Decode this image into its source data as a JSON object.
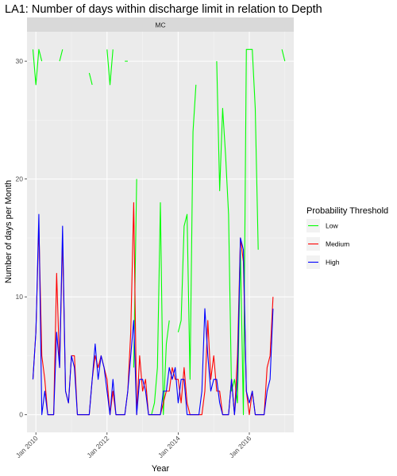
{
  "chart_data": {
    "type": "line",
    "title": "LA1: Number of days within discharge limit in relation to Depth",
    "facet": "MC",
    "xlabel": "Year",
    "ylabel": "Number of days per Month",
    "x_ticks": [
      "Jan 2010",
      "Jan 2012",
      "Jan 2014",
      "Jan 2016"
    ],
    "y_ticks": [
      0,
      10,
      20,
      30
    ],
    "ylim": [
      -1.5,
      32.5
    ],
    "xlim": [
      "2009-10",
      "2017-04"
    ],
    "grid": true,
    "legend_title": "Probability Threshold",
    "legend_position": "right",
    "series": [
      {
        "name": "Low",
        "color": "#00ff00",
        "points": [
          [
            "2009-12",
            31
          ],
          [
            "2010-01",
            28
          ],
          [
            "2010-02",
            31
          ],
          [
            "2010-03",
            30
          ],
          [
            "2010-04",
            null
          ],
          [
            "2010-08",
            null
          ],
          [
            "2010-09",
            30
          ],
          [
            "2010-10",
            31
          ],
          [
            "2010-11",
            null
          ],
          [
            "2011-06",
            null
          ],
          [
            "2011-07",
            29
          ],
          [
            "2011-08",
            28
          ],
          [
            "2011-09",
            null
          ],
          [
            "2011-12",
            null
          ],
          [
            "2012-01",
            31
          ],
          [
            "2012-02",
            28
          ],
          [
            "2012-03",
            31
          ],
          [
            "2012-04",
            null
          ],
          [
            "2012-06",
            null
          ],
          [
            "2012-07",
            30
          ],
          [
            "2012-08",
            30
          ],
          [
            "2012-09",
            null
          ],
          [
            "2012-10",
            4
          ],
          [
            "2012-11",
            20
          ],
          [
            "2012-12",
            null
          ],
          [
            "2013-04",
            0
          ],
          [
            "2013-05",
            1
          ],
          [
            "2013-06",
            4
          ],
          [
            "2013-07",
            18
          ],
          [
            "2013-08",
            0
          ],
          [
            "2013-09",
            6
          ],
          [
            "2013-10",
            8
          ],
          [
            "2013-11",
            null
          ],
          [
            "2014-01",
            7
          ],
          [
            "2014-02",
            8
          ],
          [
            "2014-03",
            16
          ],
          [
            "2014-04",
            17
          ],
          [
            "2014-05",
            3
          ],
          [
            "2014-06",
            24
          ],
          [
            "2014-07",
            28
          ],
          [
            "2014-08",
            null
          ],
          [
            "2015-02",
            30
          ],
          [
            "2015-03",
            19
          ],
          [
            "2015-04",
            26
          ],
          [
            "2015-05",
            22
          ],
          [
            "2015-06",
            17
          ],
          [
            "2015-07",
            2
          ],
          [
            "2015-08",
            3
          ],
          [
            "2015-09",
            1
          ],
          [
            "2015-10",
            14
          ],
          [
            "2015-11",
            0
          ],
          [
            "2015-12",
            31
          ],
          [
            "2016-01",
            31
          ],
          [
            "2016-02",
            31
          ],
          [
            "2016-03",
            26
          ],
          [
            "2016-04",
            14
          ],
          [
            "2016-05",
            null
          ],
          [
            "2016-11",
            null
          ],
          [
            "2016-12",
            31
          ],
          [
            "2017-01",
            30
          ]
        ]
      },
      {
        "name": "Medium",
        "color": "#ff0000",
        "points": [
          [
            "2009-12",
            3
          ],
          [
            "2010-01",
            7
          ],
          [
            "2010-02",
            16
          ],
          [
            "2010-03",
            5
          ],
          [
            "2010-04",
            3
          ],
          [
            "2010-05",
            0
          ],
          [
            "2010-06",
            0
          ],
          [
            "2010-07",
            0
          ],
          [
            "2010-08",
            12
          ],
          [
            "2010-09",
            4
          ],
          [
            "2010-10",
            15
          ],
          [
            "2010-11",
            2
          ],
          [
            "2010-12",
            1
          ],
          [
            "2011-01",
            5
          ],
          [
            "2011-02",
            5
          ],
          [
            "2011-03",
            0
          ],
          [
            "2011-04",
            0
          ],
          [
            "2011-05",
            0
          ],
          [
            "2011-06",
            0
          ],
          [
            "2011-07",
            0
          ],
          [
            "2011-08",
            3
          ],
          [
            "2011-09",
            5
          ],
          [
            "2011-10",
            4
          ],
          [
            "2011-11",
            5
          ],
          [
            "2011-12",
            4
          ],
          [
            "2012-01",
            3
          ],
          [
            "2012-02",
            0
          ],
          [
            "2012-03",
            2
          ],
          [
            "2012-04",
            0
          ],
          [
            "2012-05",
            0
          ],
          [
            "2012-06",
            0
          ],
          [
            "2012-07",
            0
          ],
          [
            "2012-08",
            2
          ],
          [
            "2012-09",
            7
          ],
          [
            "2012-10",
            18
          ],
          [
            "2012-11",
            0
          ],
          [
            "2012-12",
            5
          ],
          [
            "2013-01",
            2
          ],
          [
            "2013-02",
            3
          ],
          [
            "2013-03",
            0
          ],
          [
            "2013-04",
            0
          ],
          [
            "2013-05",
            0
          ],
          [
            "2013-06",
            0
          ],
          [
            "2013-07",
            0
          ],
          [
            "2013-08",
            1
          ],
          [
            "2013-09",
            2
          ],
          [
            "2013-10",
            2
          ],
          [
            "2013-11",
            4
          ],
          [
            "2013-12",
            3
          ],
          [
            "2014-01",
            3
          ],
          [
            "2014-02",
            1
          ],
          [
            "2014-03",
            4
          ],
          [
            "2014-04",
            1
          ],
          [
            "2014-05",
            0
          ],
          [
            "2014-06",
            0
          ],
          [
            "2014-07",
            0
          ],
          [
            "2014-08",
            0
          ],
          [
            "2014-09",
            0
          ],
          [
            "2014-10",
            2
          ],
          [
            "2014-11",
            8
          ],
          [
            "2014-12",
            3
          ],
          [
            "2015-01",
            5
          ],
          [
            "2015-02",
            2
          ],
          [
            "2015-03",
            2
          ],
          [
            "2015-04",
            0
          ],
          [
            "2015-05",
            0
          ],
          [
            "2015-06",
            0
          ],
          [
            "2015-07",
            3
          ],
          [
            "2015-08",
            0
          ],
          [
            "2015-09",
            5
          ],
          [
            "2015-10",
            15
          ],
          [
            "2015-11",
            13
          ],
          [
            "2015-12",
            2
          ],
          [
            "2016-01",
            0
          ],
          [
            "2016-02",
            2
          ],
          [
            "2016-03",
            0
          ],
          [
            "2016-04",
            0
          ],
          [
            "2016-05",
            0
          ],
          [
            "2016-06",
            0
          ],
          [
            "2016-07",
            4
          ],
          [
            "2016-08",
            5
          ],
          [
            "2016-09",
            10
          ]
        ]
      },
      {
        "name": "High",
        "color": "#0000ff",
        "points": [
          [
            "2009-12",
            3
          ],
          [
            "2010-01",
            7
          ],
          [
            "2010-02",
            17
          ],
          [
            "2010-03",
            0
          ],
          [
            "2010-04",
            2
          ],
          [
            "2010-05",
            0
          ],
          [
            "2010-06",
            0
          ],
          [
            "2010-07",
            0
          ],
          [
            "2010-08",
            7
          ],
          [
            "2010-09",
            4
          ],
          [
            "2010-10",
            16
          ],
          [
            "2010-11",
            2
          ],
          [
            "2010-12",
            1
          ],
          [
            "2011-01",
            5
          ],
          [
            "2011-02",
            4
          ],
          [
            "2011-03",
            0
          ],
          [
            "2011-04",
            0
          ],
          [
            "2011-05",
            0
          ],
          [
            "2011-06",
            0
          ],
          [
            "2011-07",
            0
          ],
          [
            "2011-08",
            3
          ],
          [
            "2011-09",
            6
          ],
          [
            "2011-10",
            3
          ],
          [
            "2011-11",
            5
          ],
          [
            "2011-12",
            4
          ],
          [
            "2012-01",
            2
          ],
          [
            "2012-02",
            0
          ],
          [
            "2012-03",
            3
          ],
          [
            "2012-04",
            0
          ],
          [
            "2012-05",
            0
          ],
          [
            "2012-06",
            0
          ],
          [
            "2012-07",
            0
          ],
          [
            "2012-08",
            2
          ],
          [
            "2012-09",
            5
          ],
          [
            "2012-10",
            8
          ],
          [
            "2012-11",
            0
          ],
          [
            "2012-12",
            3
          ],
          [
            "2013-01",
            3
          ],
          [
            "2013-02",
            2
          ],
          [
            "2013-03",
            0
          ],
          [
            "2013-04",
            0
          ],
          [
            "2013-05",
            0
          ],
          [
            "2013-06",
            0
          ],
          [
            "2013-07",
            0
          ],
          [
            "2013-08",
            2
          ],
          [
            "2013-09",
            2
          ],
          [
            "2013-10",
            4
          ],
          [
            "2013-11",
            3
          ],
          [
            "2013-12",
            4
          ],
          [
            "2014-01",
            1
          ],
          [
            "2014-02",
            3
          ],
          [
            "2014-03",
            3
          ],
          [
            "2014-04",
            0
          ],
          [
            "2014-05",
            0
          ],
          [
            "2014-06",
            0
          ],
          [
            "2014-07",
            0
          ],
          [
            "2014-08",
            0
          ],
          [
            "2014-09",
            2
          ],
          [
            "2014-10",
            9
          ],
          [
            "2014-11",
            5
          ],
          [
            "2014-12",
            2
          ],
          [
            "2015-01",
            3
          ],
          [
            "2015-02",
            3
          ],
          [
            "2015-03",
            1
          ],
          [
            "2015-04",
            0
          ],
          [
            "2015-05",
            0
          ],
          [
            "2015-06",
            0
          ],
          [
            "2015-07",
            3
          ],
          [
            "2015-08",
            0
          ],
          [
            "2015-09",
            3
          ],
          [
            "2015-10",
            15
          ],
          [
            "2015-11",
            14
          ],
          [
            "2015-12",
            2
          ],
          [
            "2016-01",
            1
          ],
          [
            "2016-02",
            2
          ],
          [
            "2016-03",
            0
          ],
          [
            "2016-04",
            0
          ],
          [
            "2016-05",
            0
          ],
          [
            "2016-06",
            0
          ],
          [
            "2016-07",
            2
          ],
          [
            "2016-08",
            3
          ],
          [
            "2016-09",
            9
          ]
        ]
      }
    ]
  }
}
